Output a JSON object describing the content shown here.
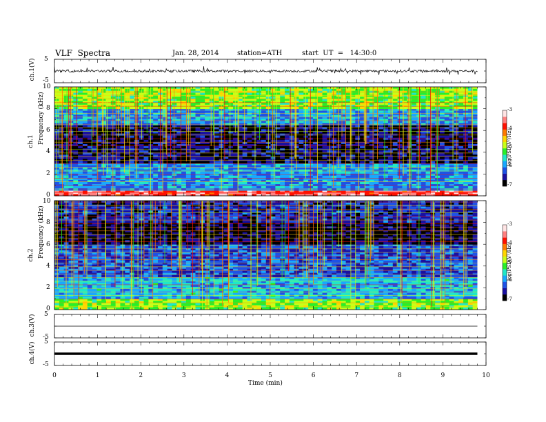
{
  "header": {
    "title": "VLF  Spectra",
    "date": "Jan. 28, 2014",
    "station": "station=ATH",
    "start": "start  UT  =   14:30:0"
  },
  "panels": {
    "ch1": {
      "ylabel": "ch.1(V)",
      "ticks": [
        "5",
        "-5"
      ]
    },
    "ch3": {
      "ylabel": "ch.3(V)",
      "ticks": [
        "5",
        "-5"
      ]
    },
    "ch4": {
      "ylabel": "ch.4(V)",
      "ticks": [
        "5",
        "-5"
      ]
    },
    "spec1": {
      "ylabel_ch": "ch.1",
      "ylabel": "Frequency  (kHz)",
      "ticks": [
        "10",
        "8",
        "6",
        "4",
        "2",
        "0"
      ]
    },
    "spec2": {
      "ylabel_ch": "ch.2",
      "ylabel": "Frequency  (kHz)",
      "ticks": [
        "10",
        "8",
        "6",
        "4",
        "2",
        "0"
      ]
    }
  },
  "colorbar": {
    "label": "log(PSD(V²/Hz)",
    "ticks": [
      "-3",
      "-4",
      "-5",
      "-6",
      "-7"
    ],
    "colors": [
      "#000000",
      "#1a10a0",
      "#1e52e6",
      "#19a8ff",
      "#20e8c8",
      "#28f028",
      "#c8ff18",
      "#ffd600",
      "#ff7a00",
      "#ff1000",
      "#ff8080",
      "#ffe4e4"
    ]
  },
  "xaxis": {
    "label": "Time  (min)",
    "ticks": [
      "0",
      "1",
      "2",
      "3",
      "4",
      "5",
      "6",
      "7",
      "8",
      "9",
      "10"
    ]
  },
  "chart_data": {
    "type": "heatmap",
    "title": "VLF  Spectra",
    "xlabel": "Time  (min)",
    "xlim": [
      0,
      10
    ],
    "data_end_min": 9.8,
    "spectrograms": [
      {
        "name": "ch.1",
        "ylabel": "Frequency  (kHz)",
        "ylim": [
          0,
          10
        ],
        "colorbar_range_logpsd": [
          -7,
          -3
        ],
        "description_bands": [
          {
            "freq_range_khz": [
              0,
              0.5
            ],
            "log_psd": -3.5
          },
          {
            "freq_range_khz": [
              0.5,
              3
            ],
            "log_psd": -6
          },
          {
            "freq_range_khz": [
              3,
              6.5
            ],
            "log_psd": -6.8
          },
          {
            "freq_range_khz": [
              6.5,
              8
            ],
            "log_psd": -6
          },
          {
            "freq_range_khz": [
              8,
              10
            ],
            "log_psd": -5
          }
        ]
      },
      {
        "name": "ch.2",
        "ylabel": "Frequency  (kHz)",
        "ylim": [
          0,
          10
        ],
        "colorbar_range_logpsd": [
          -7,
          -3
        ],
        "description_bands": [
          {
            "freq_range_khz": [
              0,
              1
            ],
            "log_psd": -5
          },
          {
            "freq_range_khz": [
              1,
              3
            ],
            "log_psd": -5.8
          },
          {
            "freq_range_khz": [
              3,
              6
            ],
            "log_psd": -6.3
          },
          {
            "freq_range_khz": [
              6,
              8
            ],
            "log_psd": -6.9
          },
          {
            "freq_range_khz": [
              8,
              10
            ],
            "log_psd": -6.5
          }
        ]
      }
    ],
    "timeseries": [
      {
        "name": "ch.1(V)",
        "ylim": [
          -5,
          5
        ],
        "mean": 0,
        "amplitude_approx": 1.0
      },
      {
        "name": "ch.3(V)",
        "ylim": [
          -5,
          5
        ],
        "mean": 0,
        "amplitude_approx": 0
      },
      {
        "name": "ch.4(V)",
        "ylim": [
          -5,
          5
        ],
        "mean": 0,
        "amplitude_approx": 0.2
      }
    ]
  }
}
